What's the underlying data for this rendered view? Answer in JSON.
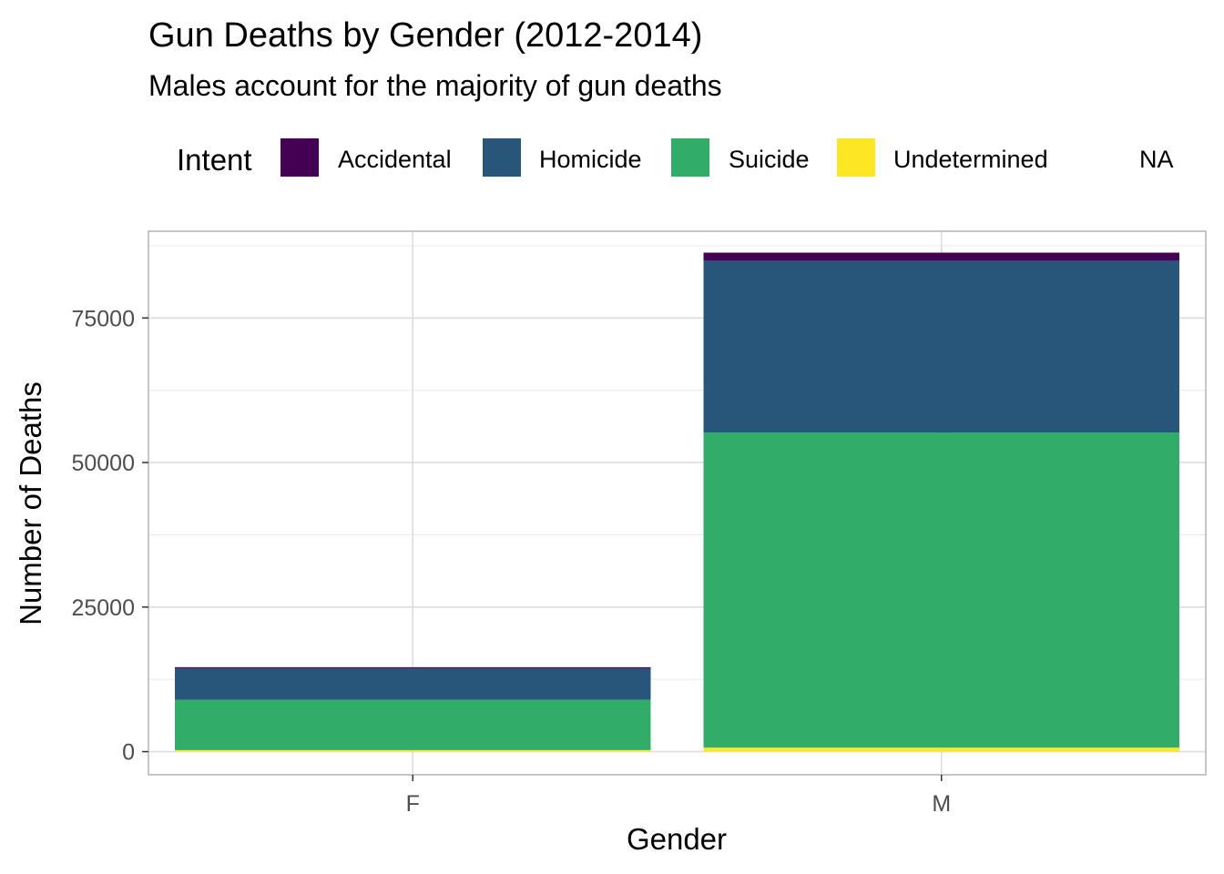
{
  "chart_data": {
    "type": "bar",
    "stacked": true,
    "title": "Gun Deaths by Gender (2012-2014)",
    "subtitle": "Males account for the majority of gun deaths",
    "xlabel": "Gender",
    "ylabel": "Number of Deaths",
    "categories": [
      "F",
      "M"
    ],
    "yticks": [
      0,
      25000,
      50000,
      75000
    ],
    "ylim": [
      -4000,
      90000
    ],
    "grid": true,
    "legend": {
      "title": "Intent",
      "placement": "top",
      "entries": [
        {
          "label": "Accidental",
          "color": "#440154"
        },
        {
          "label": "Homicide",
          "color": "#27567a"
        },
        {
          "label": "Suicide",
          "color": "#31ad69"
        },
        {
          "label": "Undetermined",
          "color": "#fde725"
        },
        {
          "label": "NA",
          "color": null
        }
      ]
    },
    "series": [
      {
        "name": "Undetermined",
        "color": "#fde725",
        "values": [
          270,
          700
        ]
      },
      {
        "name": "Suicide",
        "color": "#31ad69",
        "values": [
          8700,
          54500
        ]
      },
      {
        "name": "Homicide",
        "color": "#27567a",
        "values": [
          5400,
          29700
        ]
      },
      {
        "name": "Accidental",
        "color": "#440154",
        "values": [
          230,
          1400
        ]
      }
    ]
  }
}
